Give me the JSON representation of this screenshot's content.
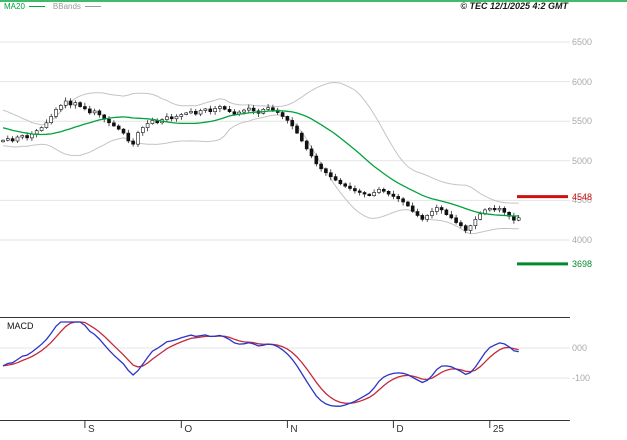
{
  "header": {
    "legend": [
      {
        "label": "MA20",
        "color": "#00a33b"
      },
      {
        "label": "BBands",
        "color": "#9a9a9a"
      }
    ],
    "copyright": "© TEC 12/1/2025 4:2 GMT"
  },
  "macd_panel_label": "MACD",
  "chart_data": {
    "type": "candlestick",
    "title": "",
    "price_panel": {
      "ylim": [
        3600,
        6600
      ],
      "gridlines": [
        {
          "value": 6500,
          "label": "6500"
        },
        {
          "value": 6000,
          "label": "6000"
        },
        {
          "value": 5500,
          "label": "5500"
        },
        {
          "value": 5000,
          "label": "5000"
        },
        {
          "value": 4500,
          "label": "4500"
        },
        {
          "value": 4000,
          "label": "4000"
        }
      ],
      "markers": [
        {
          "name": "resistance",
          "value": 4548,
          "label": "4548",
          "color": "#cc1111"
        },
        {
          "name": "support",
          "value": 3698,
          "label": "3698",
          "color": "#008a2e"
        }
      ],
      "overlays": {
        "ma_period": 20,
        "bb_period": 20,
        "bb_mult": 2
      },
      "pre_closes": [
        5620,
        5590,
        5600,
        5550,
        5560,
        5510,
        5520,
        5470,
        5480,
        5430,
        5440,
        5390,
        5400,
        5350,
        5360,
        5310,
        5320,
        5270,
        5280,
        5240
      ],
      "closes": [
        5260,
        5280,
        5250,
        5300,
        5320,
        5290,
        5340,
        5380,
        5420,
        5480,
        5560,
        5650,
        5700,
        5755,
        5705,
        5735,
        5685,
        5655,
        5605,
        5630,
        5580,
        5525,
        5480,
        5440,
        5400,
        5350,
        5250,
        5210,
        5355,
        5420,
        5470,
        5510,
        5480,
        5520,
        5555,
        5530,
        5560,
        5585,
        5605,
        5625,
        5590,
        5635,
        5655,
        5620,
        5660,
        5685,
        5650,
        5620,
        5590,
        5615,
        5640,
        5665,
        5630,
        5600,
        5650,
        5670,
        5640,
        5610,
        5560,
        5510,
        5440,
        5350,
        5250,
        5150,
        5060,
        4960,
        4900,
        4850,
        4800,
        4755,
        4710,
        4680,
        4650,
        4620,
        4600,
        4580,
        4560,
        4600,
        4640,
        4615,
        4580,
        4550,
        4520,
        4480,
        4430,
        4360,
        4310,
        4260,
        4310,
        4360,
        4410,
        4380,
        4320,
        4280,
        4220,
        4180,
        4120,
        4180,
        4260,
        4330,
        4380,
        4400,
        4380,
        4400,
        4350,
        4300,
        4250,
        4280
      ]
    },
    "macd_panel": {
      "fast": 6,
      "slow": 13,
      "signal": 5,
      "ylim": [
        -240,
        90
      ],
      "gridlines": [
        {
          "value": 0,
          "label": "000"
        },
        {
          "value": -100,
          "label": "-100"
        }
      ]
    },
    "x_ticks": [
      {
        "label": "S",
        "index": 17
      },
      {
        "label": "O",
        "index": 37
      },
      {
        "label": "N",
        "index": 59
      },
      {
        "label": "D",
        "index": 81
      },
      {
        "label": "25",
        "index": 101
      }
    ],
    "colors": {
      "ma20": "#00a33b",
      "bbands": "#c4c4c4",
      "candle": "#111111",
      "macd_line": "#2b35c7",
      "macd_signal": "#c22b3c",
      "gridline": "#e4e4e4",
      "axis_text": "#a9a9a9",
      "frame": "#333333"
    }
  }
}
